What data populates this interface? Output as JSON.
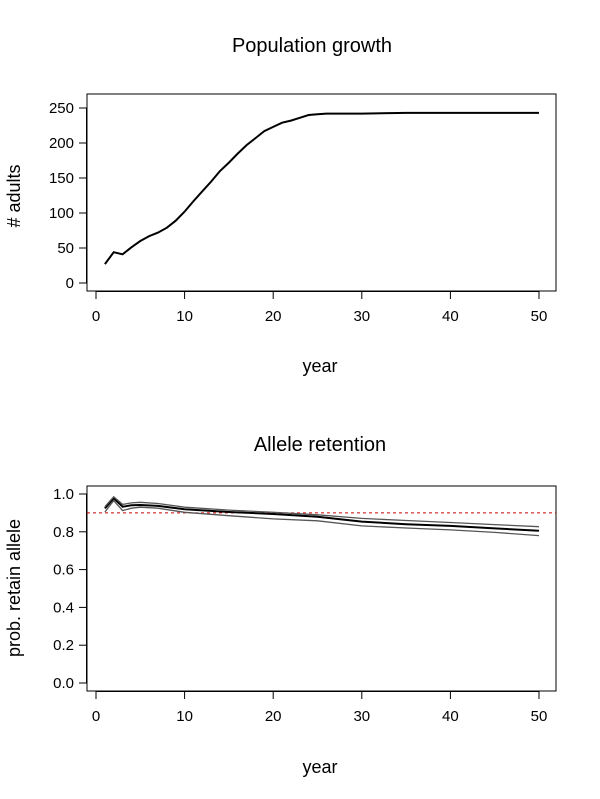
{
  "chart_data": [
    {
      "type": "line",
      "title": "Population growth",
      "xlabel": "year",
      "ylabel": "# adults",
      "xlim": [
        0,
        50
      ],
      "ylim": [
        0,
        250
      ],
      "xticks": [
        "0",
        "10",
        "20",
        "30",
        "40",
        "50"
      ],
      "yticks": [
        "0",
        "50",
        "100",
        "150",
        "200",
        "250"
      ],
      "grid": false,
      "series": [
        {
          "color": "#000000",
          "x": [
            1,
            2,
            3,
            4,
            5,
            6,
            7,
            8,
            9,
            10,
            11,
            12,
            13,
            14,
            15,
            16,
            17,
            18,
            19,
            20,
            21,
            22,
            23,
            24,
            25,
            26,
            30,
            35,
            40,
            45,
            50
          ],
          "y": [
            27,
            44,
            41,
            51,
            60,
            67,
            72,
            79,
            89,
            102,
            117,
            131,
            145,
            160,
            172,
            185,
            197,
            207,
            217,
            223,
            229,
            232,
            236,
            240,
            241,
            242,
            242,
            243,
            243,
            243,
            243
          ]
        }
      ]
    },
    {
      "type": "line",
      "title": "Allele retention",
      "xlabel": "year",
      "ylabel": "prob. retain allele",
      "xlim": [
        0,
        50
      ],
      "ylim": [
        0,
        1
      ],
      "xticks": [
        "0",
        "10",
        "20",
        "30",
        "40",
        "50"
      ],
      "yticks": [
        "0.0",
        "0.2",
        "0.4",
        "0.6",
        "0.8",
        "1.0"
      ],
      "grid": false,
      "reference_line": {
        "y": 0.9,
        "color": "#cc0000",
        "style": "dashed"
      },
      "series": [
        {
          "color": "#000000",
          "x": [
            1,
            2,
            3,
            4,
            5,
            7,
            10,
            15,
            20,
            25,
            30,
            35,
            40,
            45,
            50
          ],
          "y": [
            0.924,
            0.977,
            0.933,
            0.94,
            0.942,
            0.937,
            0.919,
            0.905,
            0.894,
            0.88,
            0.854,
            0.84,
            0.831,
            0.818,
            0.806
          ]
        },
        {
          "color": "#555555",
          "x": [
            1,
            2,
            3,
            4,
            5,
            7,
            10,
            15,
            20,
            25,
            30,
            35,
            40,
            45,
            50
          ],
          "y": [
            0.933,
            0.985,
            0.945,
            0.953,
            0.956,
            0.95,
            0.93,
            0.915,
            0.903,
            0.89,
            0.871,
            0.86,
            0.849,
            0.838,
            0.827
          ]
        },
        {
          "color": "#555555",
          "x": [
            1,
            2,
            3,
            4,
            5,
            7,
            10,
            15,
            20,
            25,
            30,
            35,
            40,
            45,
            50
          ],
          "y": [
            0.905,
            0.965,
            0.912,
            0.925,
            0.93,
            0.925,
            0.903,
            0.885,
            0.868,
            0.858,
            0.831,
            0.82,
            0.81,
            0.797,
            0.78
          ]
        }
      ]
    }
  ]
}
